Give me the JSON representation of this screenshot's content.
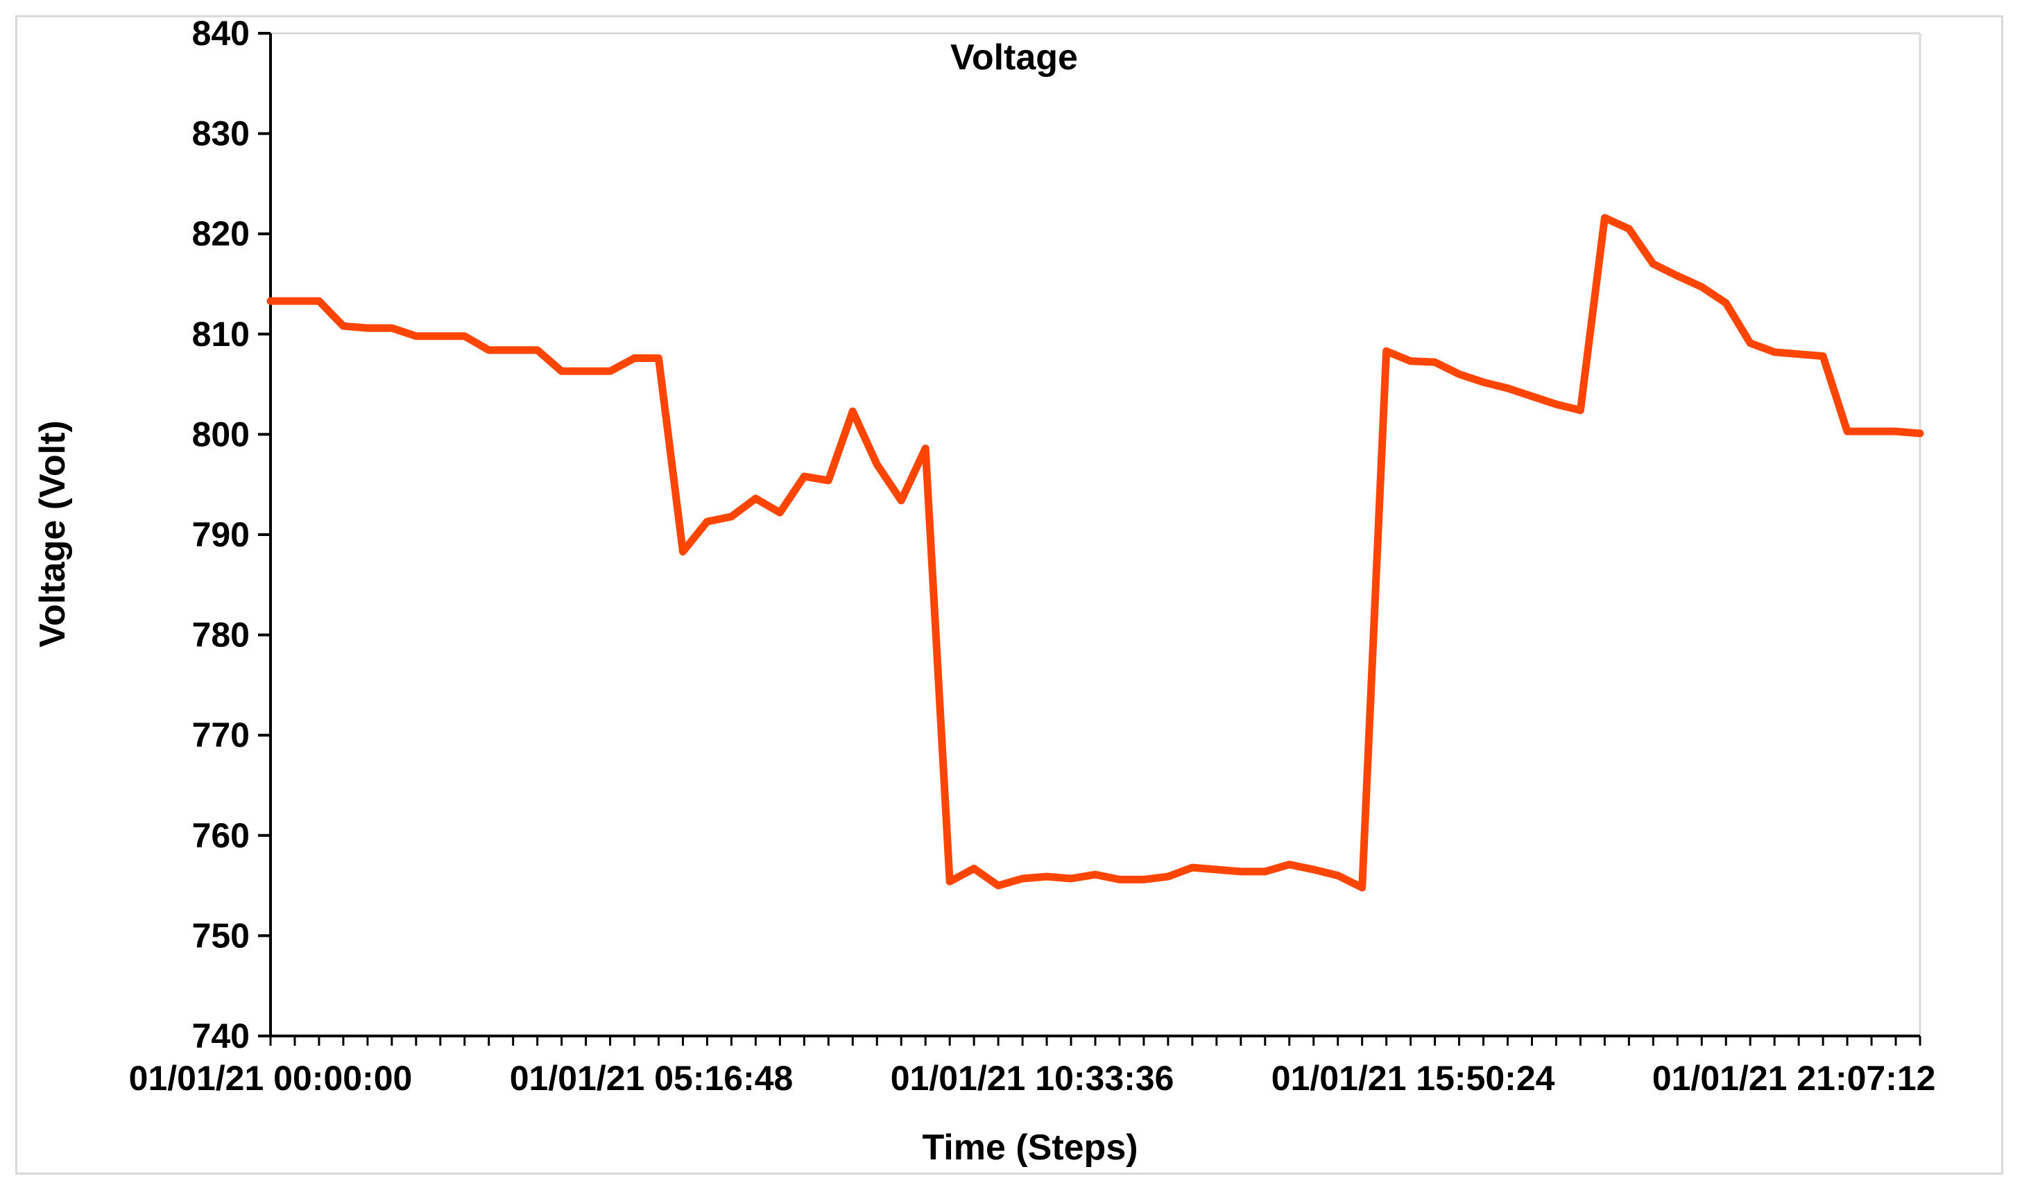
{
  "chart_data": {
    "type": "line",
    "title": "Voltage",
    "xlabel": "Time (Steps)",
    "ylabel": "Voltage (Volt)",
    "ylim": [
      740,
      840
    ],
    "yticks": [
      740,
      750,
      760,
      770,
      780,
      790,
      800,
      810,
      820,
      830,
      840
    ],
    "xlim": [
      0,
      68
    ],
    "xtick_labels": [
      {
        "step": 0,
        "label": "01/01/21 00:00:00"
      },
      {
        "step": 15.7,
        "label": "01/01/21 05:16:48"
      },
      {
        "step": 31.4,
        "label": "01/01/21 10:33:36"
      },
      {
        "step": 47.1,
        "label": "01/01/21 15:50:24"
      },
      {
        "step": 62.8,
        "label": "01/01/21 21:07:12"
      }
    ],
    "grid": false,
    "line_color": "#ff4500",
    "series": [
      {
        "x": [
          0,
          1,
          2,
          3,
          4,
          5,
          6,
          7,
          8,
          9,
          10,
          11,
          12,
          13,
          14,
          15,
          16,
          17,
          18,
          19,
          20,
          21,
          22,
          23,
          24,
          25,
          26,
          27,
          28,
          29,
          30,
          31,
          32,
          33,
          34,
          35,
          36,
          37,
          38,
          39,
          40,
          41,
          42,
          43,
          44,
          45,
          46,
          47,
          48,
          49,
          50,
          51,
          52,
          53,
          54,
          55,
          56,
          57,
          58,
          59,
          60,
          61,
          62,
          63,
          64,
          65,
          66,
          67,
          68
        ],
        "y": [
          813.3,
          813.3,
          813.3,
          810.8,
          810.6,
          810.6,
          809.8,
          809.8,
          809.8,
          808.4,
          808.4,
          808.4,
          806.3,
          806.3,
          806.3,
          807.6,
          807.6,
          788.3,
          791.3,
          791.8,
          793.6,
          792.2,
          795.8,
          795.4,
          802.3,
          797.0,
          793.4,
          798.6,
          755.4,
          756.7,
          755.0,
          755.7,
          755.9,
          755.7,
          756.1,
          755.6,
          755.6,
          755.9,
          756.8,
          756.6,
          756.4,
          756.4,
          757.1,
          756.6,
          756.0,
          754.8,
          808.3,
          807.3,
          807.2,
          806.0,
          805.2,
          804.6,
          803.8,
          803.0,
          802.4,
          821.6,
          820.5,
          817.0,
          815.8,
          814.7,
          813.1,
          809.1,
          808.2,
          808.0,
          807.8,
          800.3,
          800.3,
          800.3,
          800.1
        ]
      }
    ]
  }
}
